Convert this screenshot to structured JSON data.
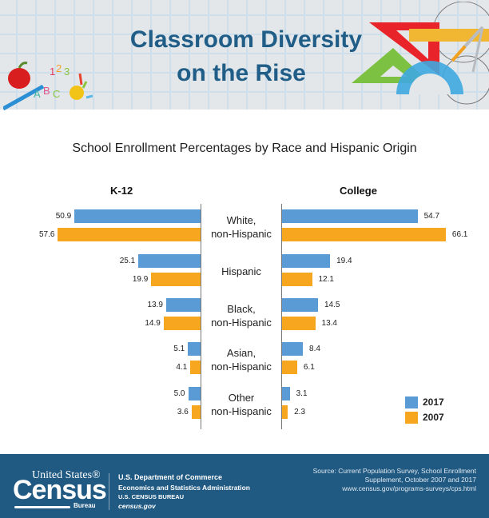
{
  "header": {
    "title_line1": "Classroom Diversity",
    "title_line2": "on the Rise",
    "left_decoration": "apple-paintbrush-abc-123-handprint-illustration",
    "right_decoration": "triangles-ruler-protractor-compass-illustration"
  },
  "chart": {
    "subtitle": "School Enrollment Percentages by Race and Hispanic Origin",
    "left_panel_title": "K-12",
    "right_panel_title": "College",
    "categories": [
      {
        "line1": "White,",
        "line2": "non-Hispanic"
      },
      {
        "line1": "Hispanic",
        "line2": ""
      },
      {
        "line1": "Black,",
        "line2": "non-Hispanic"
      },
      {
        "line1": "Asian,",
        "line2": "non-Hispanic"
      },
      {
        "line1": "Other",
        "line2": "non-Hispanic"
      }
    ],
    "k12": {
      "v2017": [
        "50.9",
        "25.1",
        "13.9",
        "5.1",
        "5.0"
      ],
      "v2007": [
        "57.6",
        "19.9",
        "14.9",
        "4.1",
        "3.6"
      ]
    },
    "college": {
      "v2017": [
        "54.7",
        "19.4",
        "14.5",
        "8.4",
        "3.1"
      ],
      "v2007": [
        "66.1",
        "12.1",
        "13.4",
        "6.1",
        "2.3"
      ]
    },
    "legend": [
      {
        "label": "2017",
        "color": "#5b9bd5"
      },
      {
        "label": "2007",
        "color": "#f7a620"
      }
    ]
  },
  "chart_data": [
    {
      "type": "bar",
      "orientation": "horizontal",
      "title": "School Enrollment Percentages by Race and Hispanic Origin — K-12",
      "categories": [
        "White, non-Hispanic",
        "Hispanic",
        "Black, non-Hispanic",
        "Asian, non-Hispanic",
        "Other non-Hispanic"
      ],
      "series": [
        {
          "name": "2017",
          "color": "#5b9bd5",
          "values": [
            50.9,
            25.1,
            13.9,
            5.1,
            5.0
          ]
        },
        {
          "name": "2007",
          "color": "#f7a620",
          "values": [
            57.6,
            19.9,
            14.9,
            4.1,
            3.6
          ]
        }
      ],
      "xlabel": "",
      "ylabel": "",
      "grid": false,
      "legend_position": "bottom-right",
      "direction": "leftward"
    },
    {
      "type": "bar",
      "orientation": "horizontal",
      "title": "School Enrollment Percentages by Race and Hispanic Origin — College",
      "categories": [
        "White, non-Hispanic",
        "Hispanic",
        "Black, non-Hispanic",
        "Asian, non-Hispanic",
        "Other non-Hispanic"
      ],
      "series": [
        {
          "name": "2017",
          "color": "#5b9bd5",
          "values": [
            54.7,
            19.4,
            14.5,
            8.4,
            3.1
          ]
        },
        {
          "name": "2007",
          "color": "#f7a620",
          "values": [
            66.1,
            12.1,
            13.4,
            6.1,
            2.3
          ]
        }
      ],
      "xlabel": "",
      "ylabel": "",
      "grid": false,
      "legend_position": "bottom-right",
      "direction": "rightward"
    }
  ],
  "footer": {
    "logo_top": "United States®",
    "logo_main": "Census",
    "logo_bottom": "Bureau",
    "dept_line1": "U.S. Department of Commerce",
    "dept_line2": "Economics and Statistics Administration",
    "dept_line3": "U.S. CENSUS BUREAU",
    "dept_line4": "census.gov",
    "source_line1": "Source: Current Population Survey, School Enrollment",
    "source_line2": "Supplement, October 2007 and 2017",
    "source_line3": "www.census.gov/programs-surveys/cps.html"
  }
}
